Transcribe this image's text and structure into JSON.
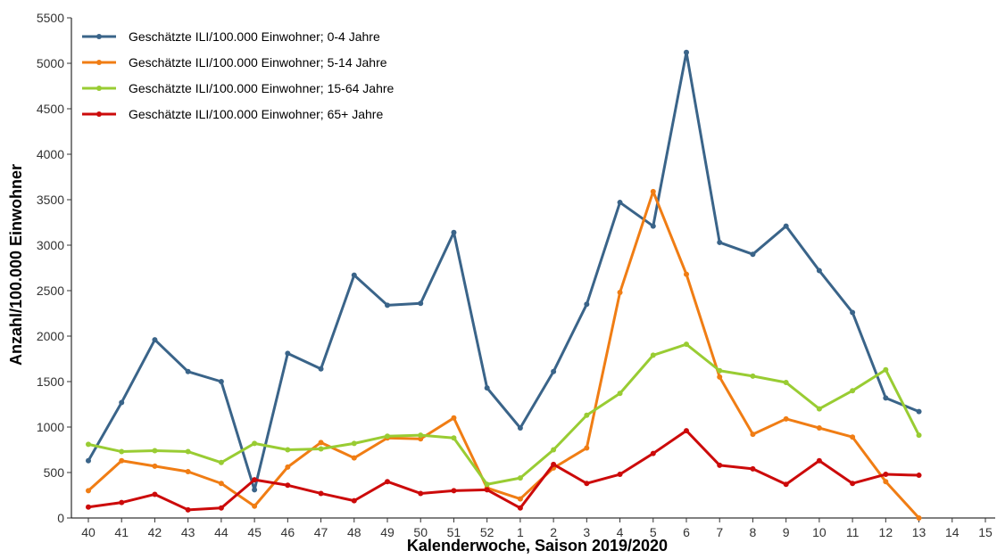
{
  "chart_data": {
    "type": "line",
    "xlabel": "Kalenderwoche, Saison 2019/2020",
    "ylabel": "Anzahl/100.000 Einwohner",
    "categories": [
      "40",
      "41",
      "42",
      "43",
      "44",
      "45",
      "46",
      "47",
      "48",
      "49",
      "50",
      "51",
      "52",
      "1",
      "2",
      "3",
      "4",
      "5",
      "6",
      "7",
      "8",
      "9",
      "10",
      "11",
      "12",
      "13",
      "14",
      "15"
    ],
    "ylim": [
      0,
      5500
    ],
    "yticks": [
      0,
      500,
      1000,
      1500,
      2000,
      2500,
      3000,
      3500,
      4000,
      4500,
      5000,
      5500
    ],
    "grid": false,
    "legend_position": "top-left",
    "series": [
      {
        "name": "Geschätzte ILI/100.000 Einwohner; 0-4 Jahre",
        "color": "#3a6489",
        "values": [
          630,
          1270,
          1960,
          1610,
          1500,
          310,
          1810,
          1640,
          2670,
          2340,
          2360,
          3140,
          1430,
          990,
          1610,
          2350,
          3470,
          3210,
          5120,
          3030,
          2900,
          3210,
          2720,
          2260,
          1320,
          1170,
          null,
          null
        ]
      },
      {
        "name": "Geschätzte ILI/100.000 Einwohner; 5-14 Jahre",
        "color": "#f07d14",
        "values": [
          300,
          630,
          570,
          510,
          380,
          130,
          560,
          830,
          660,
          880,
          870,
          1100,
          330,
          210,
          550,
          770,
          2480,
          3590,
          2680,
          1550,
          920,
          1090,
          990,
          890,
          400,
          0,
          null,
          null
        ]
      },
      {
        "name": "Geschätzte ILI/100.000 Einwohner; 15-64 Jahre",
        "color": "#99cc33",
        "values": [
          810,
          730,
          740,
          730,
          610,
          820,
          750,
          760,
          820,
          900,
          910,
          880,
          370,
          440,
          750,
          1130,
          1370,
          1790,
          1910,
          1620,
          1560,
          1490,
          1200,
          1400,
          1630,
          910,
          null,
          null
        ]
      },
      {
        "name": "Geschätzte ILI/100.000 Einwohner; 65+ Jahre",
        "color": "#cc0a0a",
        "values": [
          120,
          170,
          260,
          90,
          110,
          420,
          360,
          270,
          190,
          400,
          270,
          300,
          310,
          110,
          590,
          380,
          480,
          710,
          960,
          580,
          540,
          370,
          630,
          380,
          480,
          470,
          null,
          null
        ]
      }
    ]
  }
}
